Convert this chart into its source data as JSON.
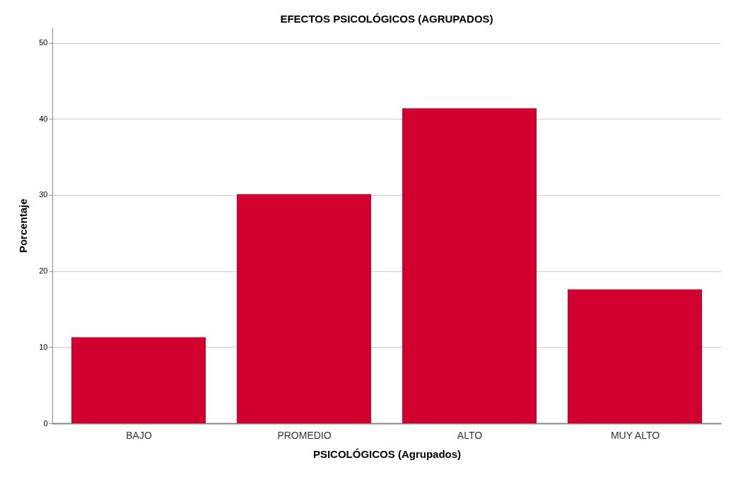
{
  "chart_data": {
    "type": "bar",
    "title": "EFECTOS PSICOLÓGICOS (AGRUPADOS)",
    "xlabel": "PSICOLÓGICOS (Agrupados)",
    "ylabel": "Porcentaje",
    "categories": [
      "BAJO",
      "PROMEDIO",
      "ALTO",
      "MUY ALTO"
    ],
    "values": [
      11.3,
      30.1,
      41.4,
      17.6
    ],
    "color": "#d2002e",
    "ylim": [
      0,
      52
    ],
    "yticks": [
      0,
      10,
      20,
      30,
      40,
      50
    ],
    "grid": "y"
  }
}
